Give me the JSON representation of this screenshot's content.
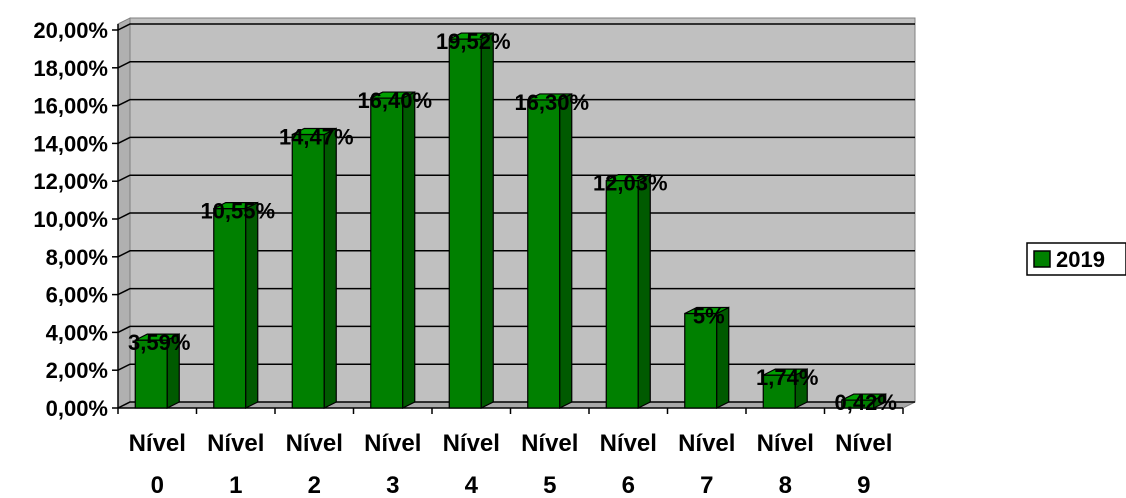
{
  "chart_data": {
    "type": "bar",
    "categories": [
      [
        "Nível",
        "0"
      ],
      [
        "Nível",
        "1"
      ],
      [
        "Nível",
        "2"
      ],
      [
        "Nível",
        "3"
      ],
      [
        "Nível",
        "4"
      ],
      [
        "Nível",
        "5"
      ],
      [
        "Nível",
        "6"
      ],
      [
        "Nível",
        "7"
      ],
      [
        "Nível",
        "8"
      ],
      [
        "Nível",
        "9"
      ]
    ],
    "series": [
      {
        "name": "2019",
        "values": [
          3.59,
          10.55,
          14.47,
          16.4,
          19.52,
          16.3,
          12.03,
          5,
          1.74,
          0.42
        ],
        "data_labels": [
          "3,59%",
          "10,55%",
          "14,47%",
          "16,40%",
          "19,52%",
          "16,30%",
          "12,03%",
          "5%",
          "1,74%",
          "0,42%"
        ]
      }
    ],
    "y_ticks": [
      "0,00%",
      "2,00%",
      "4,00%",
      "6,00%",
      "8,00%",
      "10,00%",
      "12,00%",
      "14,00%",
      "16,00%",
      "18,00%",
      "20,00%"
    ],
    "ylim": [
      0,
      20
    ],
    "title": "",
    "xlabel": "",
    "ylabel": "",
    "grid": true,
    "legend_position": "right",
    "colors": {
      "bar_front": "#008000",
      "bar_top": "#00a000",
      "bar_side": "#005a00",
      "plot_back": "#c0c0c0",
      "plot_floor": "#a8a8a8",
      "gridline": "#000000"
    }
  }
}
